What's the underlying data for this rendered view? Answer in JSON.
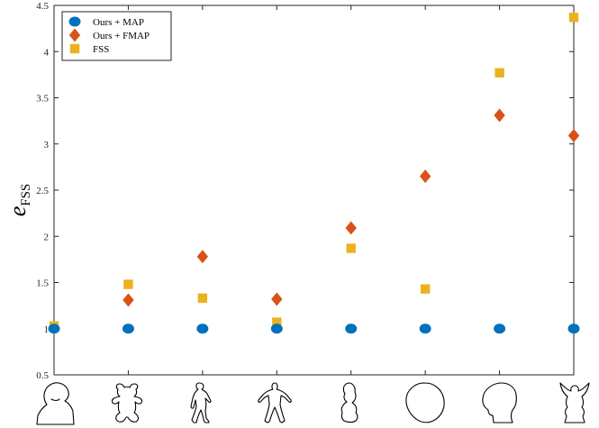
{
  "chart_data": {
    "type": "scatter",
    "title": "",
    "ylabel_main": "e",
    "ylabel_sub": "FSS",
    "xlabel": "",
    "ylim": [
      0.5,
      4.5
    ],
    "yticks": [
      0.5,
      1,
      1.5,
      2,
      2.5,
      3,
      3.5,
      4,
      4.5
    ],
    "ytick_labels": [
      "0.5",
      "1",
      "1.5",
      "2",
      "2.5",
      "3",
      "3.5",
      "4",
      "4.5"
    ],
    "x": [
      1,
      2,
      3,
      4,
      5,
      6,
      7,
      8
    ],
    "categories": [
      "torso",
      "teddy bear",
      "dancer",
      "human figure",
      "bust",
      "blob",
      "head",
      "statue"
    ],
    "grid": false,
    "legend_position": "top-left",
    "series": [
      {
        "name": "Ours + MAP",
        "marker": "circle",
        "color": "#0072BD",
        "values": [
          1.0,
          1.0,
          1.0,
          1.0,
          1.0,
          1.0,
          1.0,
          1.0
        ]
      },
      {
        "name": "Ours + FMAP",
        "marker": "diamond",
        "color": "#D95319",
        "values": [
          null,
          1.31,
          1.78,
          1.32,
          2.09,
          2.65,
          3.31,
          3.09
        ]
      },
      {
        "name": "FSS",
        "marker": "square",
        "color": "#EDB120",
        "values": [
          1.03,
          1.48,
          1.33,
          1.07,
          1.87,
          1.43,
          3.77,
          4.37
        ]
      }
    ]
  }
}
